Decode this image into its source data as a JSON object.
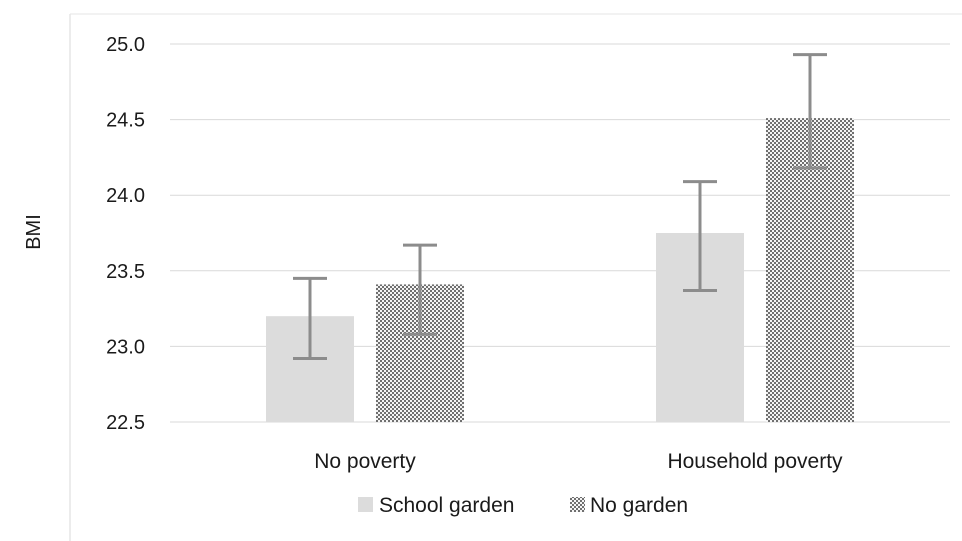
{
  "chart_data": {
    "type": "bar",
    "title": "",
    "xlabel": "",
    "ylabel": "BMI",
    "ylim": [
      22.5,
      25.0
    ],
    "yticks": [
      "22.5",
      "23.0",
      "23.5",
      "24.0",
      "24.5",
      "25.0"
    ],
    "grid": true,
    "legend_position": "bottom",
    "categories": [
      "No poverty",
      "Household poverty"
    ],
    "series": [
      {
        "name": "School garden",
        "values": [
          23.2,
          23.75
        ],
        "error_low": [
          22.92,
          23.37
        ],
        "error_high": [
          23.45,
          24.09
        ],
        "color": "#dcdcdc",
        "pattern": "solid"
      },
      {
        "name": "No garden",
        "values": [
          23.41,
          24.51
        ],
        "error_low": [
          23.08,
          24.18
        ],
        "error_high": [
          23.67,
          24.93
        ],
        "color": "#8a8a8a",
        "pattern": "checkered"
      }
    ]
  }
}
